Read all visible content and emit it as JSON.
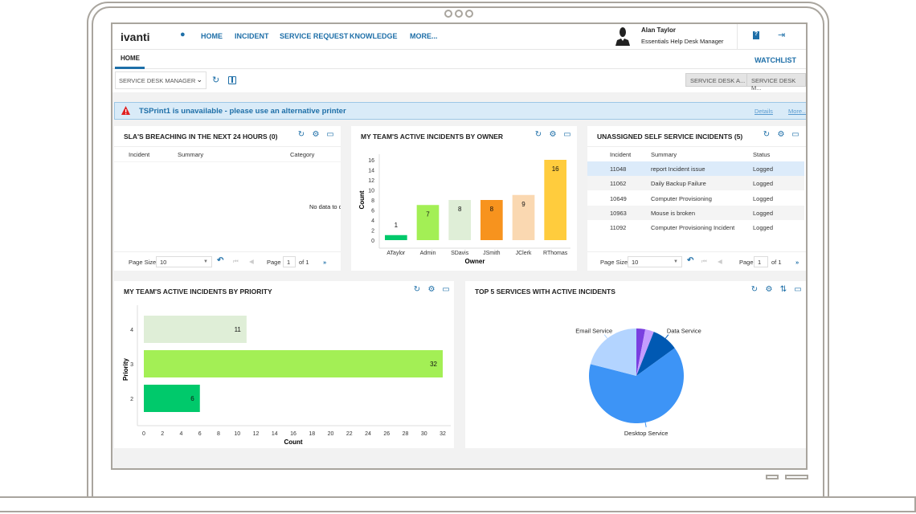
{
  "header": {
    "logo": "ivanti",
    "nav": [
      "HOME",
      "INCIDENT",
      "SERVICE REQUEST",
      "KNOWLEDGE",
      "MORE..."
    ],
    "user_name": "Alan Taylor",
    "user_role": "Essentials Help Desk Manager"
  },
  "tabs": {
    "home": "HOME",
    "watchlist": "WATCHLIST"
  },
  "toolbar": {
    "role_select": "SERVICE DESK MANAGER",
    "buttons": [
      "SERVICE DESK A...",
      "SERVICE DESK M..."
    ]
  },
  "alert": {
    "message": "TSPrint1 is unavailable - please use an alternative printer",
    "details": "Details",
    "more": "More..."
  },
  "sla": {
    "title": "SLA'S BREACHING IN THE NEXT 24 HOURS (0)",
    "columns": [
      "Incident",
      "Summary",
      "Category"
    ],
    "empty": "No data to d",
    "pager": {
      "page_size_label": "Page Size",
      "page_size": "10",
      "page_label": "Page",
      "page": "1",
      "of": "of 1"
    }
  },
  "unassigned": {
    "title": "UNASSIGNED SELF SERVICE INCIDENTS (5)",
    "columns": [
      "Incident",
      "Summary",
      "Status"
    ],
    "rows": [
      [
        "11048",
        "report Incident issue",
        "Logged"
      ],
      [
        "11062",
        "Daily Backup Failure",
        "Logged"
      ],
      [
        "10649",
        "Computer Provisioning",
        "Logged"
      ],
      [
        "10963",
        "Mouse is broken",
        "Logged"
      ],
      [
        "11092",
        "Computer Provisioning Incident",
        "Logged"
      ]
    ],
    "pager": {
      "page_size_label": "Page Size",
      "page_size": "10",
      "page_label": "Page",
      "page": "1",
      "of": "of 1"
    }
  },
  "chart_data": [
    {
      "title": "MY TEAM'S ACTIVE INCIDENTS BY OWNER",
      "type": "bar",
      "xlabel": "Owner",
      "ylabel": "Count",
      "categories": [
        "ATaylor",
        "Admin",
        "SDavis",
        "JSmith",
        "JClerk",
        "RThomas"
      ],
      "values": [
        1,
        7,
        8,
        8,
        9,
        16
      ],
      "colors": [
        "#00c96b",
        "#a3ef55",
        "#dfeed7",
        "#f7931e",
        "#fad8b1",
        "#ffcc3d"
      ],
      "ylim": [
        0,
        16
      ],
      "yticks": [
        0,
        2,
        4,
        6,
        8,
        10,
        12,
        14,
        16
      ]
    },
    {
      "title": "MY TEAM'S ACTIVE INCIDENTS BY PRIORITY",
      "type": "bar",
      "orientation": "horizontal",
      "xlabel": "Count",
      "ylabel": "Priority",
      "categories": [
        "4",
        "3",
        "2"
      ],
      "values": [
        11,
        32,
        6
      ],
      "colors": [
        "#dfeed7",
        "#a3ef55",
        "#00c96b"
      ],
      "xlim": [
        0,
        32
      ],
      "xticks": [
        0,
        2,
        4,
        6,
        8,
        10,
        12,
        14,
        16,
        18,
        20,
        22,
        24,
        26,
        28,
        30,
        32
      ]
    },
    {
      "title": "TOP 5 SERVICES WITH ACTIVE INCIDENTS",
      "type": "pie",
      "slices": [
        {
          "label": "",
          "value": 3,
          "color": "#7a3fe0"
        },
        {
          "label": "",
          "value": 3,
          "color": "#c49cff"
        },
        {
          "label": "Data Service",
          "value": 9,
          "color": "#0059b3"
        },
        {
          "label": "Desktop Service",
          "value": 64,
          "color": "#3d94f6"
        },
        {
          "label": "Email Service",
          "value": 21,
          "color": "#b3d4ff"
        }
      ]
    }
  ]
}
